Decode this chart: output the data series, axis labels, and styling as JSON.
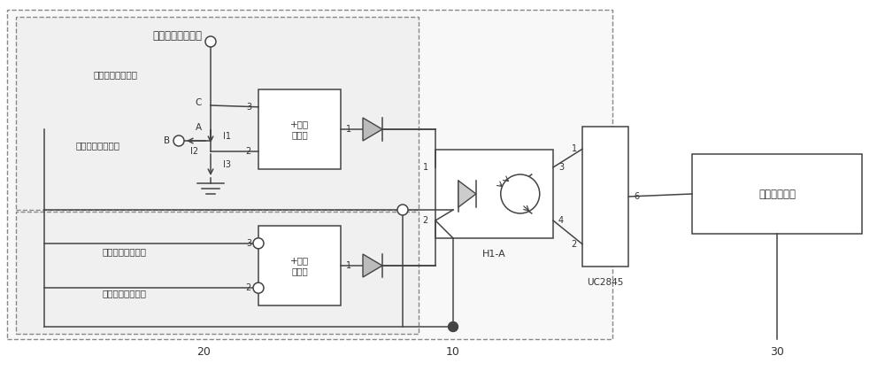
{
  "upper_title": "充电电压控制信号",
  "upper_text1": "女偶充电电压信号",
  "upper_text2": "温度补偿控制信号",
  "lower_text1": "女偶充电电流信号",
  "lower_text2": "充电电流控制信号",
  "comp2_text": "+第二\n比较器",
  "comp1_text": "+第一\n比较器",
  "h1a_text": "H1-A",
  "uc_text": "UC2845",
  "final_text": "双管正激电路",
  "num20": "20",
  "num10": "10",
  "num30": "30"
}
